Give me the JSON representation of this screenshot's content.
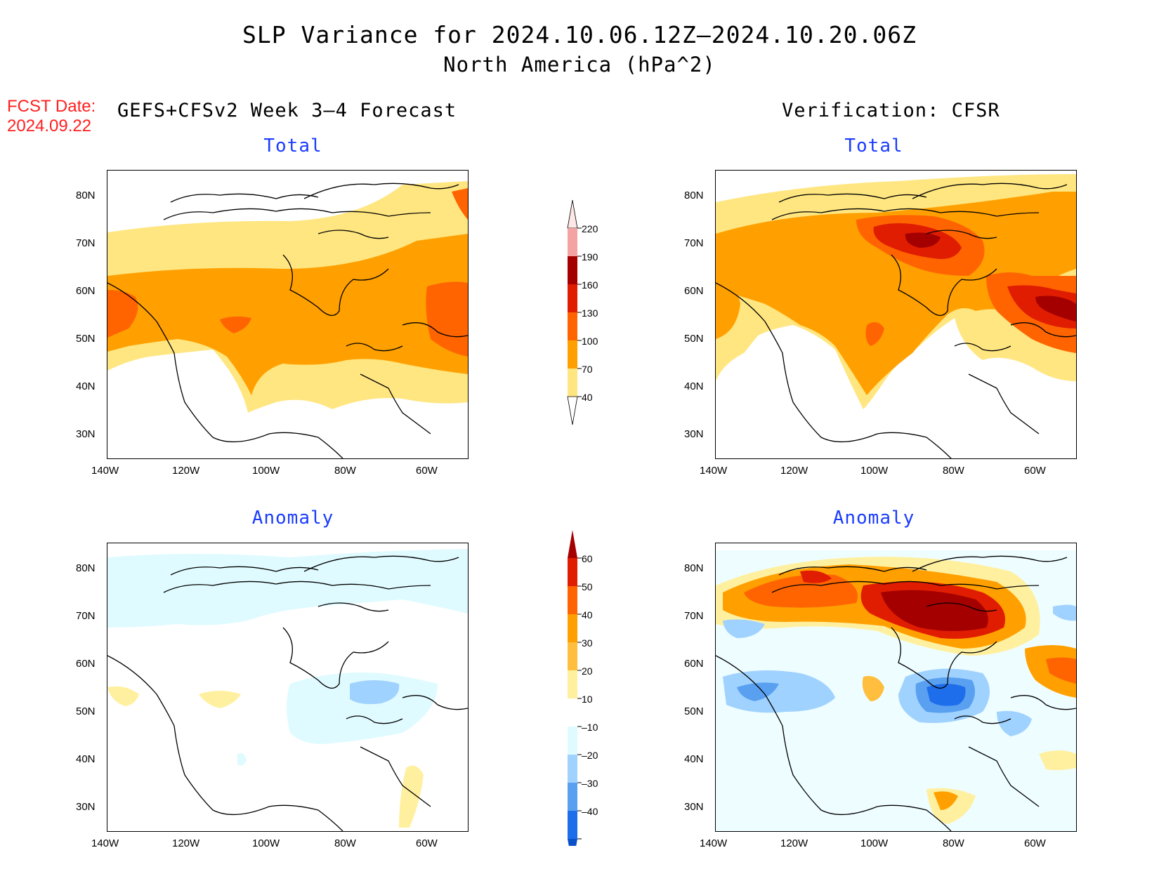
{
  "title": {
    "line1": "SLP Variance for 2024.10.06.12Z–2024.10.20.06Z",
    "line2": "North America (hPa^2)"
  },
  "fcst_date": {
    "label": "FCST Date:",
    "value": "2024.09.22"
  },
  "left_header": "GEFS+CFSv2 Week 3–4 Forecast",
  "right_header": "Verification: CFSR",
  "panels": {
    "top_left_title": "Total",
    "top_right_title": "Total",
    "bottom_left_title": "Anomaly",
    "bottom_right_title": "Anomaly"
  },
  "axes": {
    "lat_labels": [
      "80N",
      "70N",
      "60N",
      "50N",
      "40N",
      "30N"
    ],
    "lon_labels": [
      "140W",
      "120W",
      "100W",
      "80W",
      "60W"
    ]
  },
  "colorbar_total": {
    "labels": [
      "220",
      "190",
      "160",
      "130",
      "100",
      "70",
      "40"
    ],
    "colors": [
      "#fde8e6",
      "#f4a3a3",
      "#a50000",
      "#e01d00",
      "#ff6400",
      "#ffa000",
      "#ffe680"
    ]
  },
  "colorbar_anomaly": {
    "labels": [
      "60",
      "50",
      "40",
      "30",
      "20",
      "10",
      "–10",
      "–20",
      "–30",
      "–40"
    ],
    "colors": [
      "#a50000",
      "#e01d00",
      "#ff6400",
      "#ffa000",
      "#ffbe3d",
      "#fff0a0",
      "#ffffff",
      "#e0fbff",
      "#a0d2ff",
      "#5aa0f0",
      "#1e6eeb",
      "#0a50c8"
    ]
  }
}
